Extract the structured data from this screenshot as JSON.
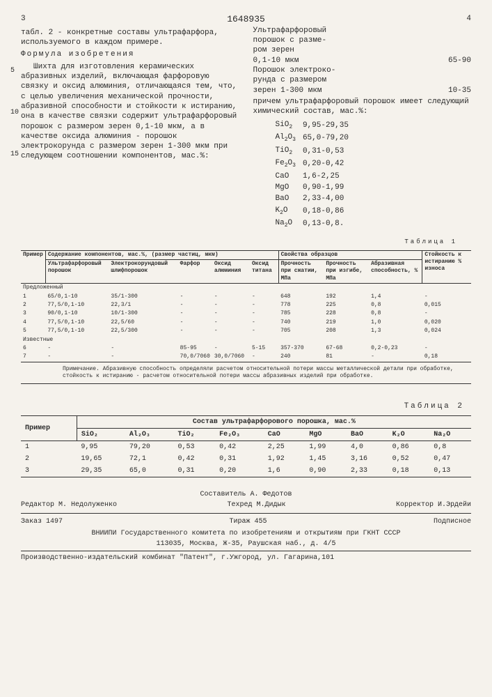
{
  "header": {
    "page_l": "3",
    "doc": "1648935",
    "page_r": "4"
  },
  "leftcol": {
    "p1": "табл. 2 - конкретные составы ультрафарфора, используемого в каждом примере.",
    "formula_label": "Формула изобретения",
    "p2": "Шихта для изготовления керамических абразивных изделий, включающая фарфоровую связку и оксид алюминия, отличающаяся тем, что, с целью увеличения механической прочности, абразивной способности и стойкости к истиранию, она в качестве связки содержит ультрафарфоровый порошок с размером зерен 0,1-10 мкм, а в качестве оксида алюминия - порошок электрокорунда с размером зерен 1-300 мкм при следующем соотношении компонентов, мас.%:"
  },
  "rightcol": {
    "r1a": "Ультрафарфоровый",
    "r1b": "порошок с разме-",
    "r1c": "ром зерен",
    "r1d": "0,1-10 мкм",
    "r1v": "65-90",
    "r2a": "Порошок электроко-",
    "r2b": "рунда с размером",
    "r2c": "зерен 1-300 мкм",
    "r2v": "10-35",
    "r3": "причем ультрафарфоровый порошок имеет следующий химический состав, мас.%:"
  },
  "margin_nums": {
    "n5": "5",
    "n10": "10",
    "n15": "15"
  },
  "chem": [
    {
      "f": "SiO",
      "s": "2",
      "v": "9,95-29,35"
    },
    {
      "f": "Al",
      "s": "2",
      "f2": "O",
      "s2": "3",
      "v": "65,0-79,20"
    },
    {
      "f": "TiO",
      "s": "2",
      "v": "0,31-0,53"
    },
    {
      "f": "Fe",
      "s": "2",
      "f2": "O",
      "s2": "3",
      "v": "0,20-0,42"
    },
    {
      "f": "CaO",
      "s": "",
      "v": "1,6-2,25"
    },
    {
      "f": "MgO",
      "s": "",
      "v": "0,90-1,99"
    },
    {
      "f": "BaO",
      "s": "",
      "v": "2,33-4,00"
    },
    {
      "f": "K",
      "s": "2",
      "f2": "O",
      "v": "0,18-0,86"
    },
    {
      "f": "Na",
      "s": "2",
      "f2": "O",
      "v": "0,13-0,8."
    }
  ],
  "t1": {
    "title": "Таблица 1",
    "h_primer": "Пример",
    "h_comp": "Содержание компонентов, мас.%, (размер частиц, мкм)",
    "h_prop": "Свойства образцов",
    "h_wear": "Стойкость к истиранию % износа",
    "h_uf": "Ультрафарфоровый порошок",
    "h_ek": "Электрокорундовый шлифпорошок",
    "h_far": "Фарфор",
    "h_al": "Оксид алюминия",
    "h_ti": "Оксид титана",
    "h_str": "Прочность при сжатии, МПа",
    "h_bend": "Прочность при изгибе, МПа",
    "h_abr": "Абразивная способность, %",
    "group1": "Предложенный",
    "group2": "Известные",
    "rows": [
      {
        "n": "1",
        "uf": "65/0,1-10",
        "ek": "35/1-300",
        "far": "-",
        "al": "-",
        "ti": "-",
        "str": "648",
        "bend": "192",
        "abr": "1,4",
        "wear": "-"
      },
      {
        "n": "2",
        "uf": "77,5/0,1-10",
        "ek": "22,3/1",
        "far": "-",
        "al": "-",
        "ti": "-",
        "str": "778",
        "bend": "225",
        "abr": "0,8",
        "wear": "0,015"
      },
      {
        "n": "3",
        "uf": "90/0,1-10",
        "ek": "10/1-300",
        "far": "-",
        "al": "-",
        "ti": "-",
        "str": "785",
        "bend": "228",
        "abr": "0,8",
        "wear": "-"
      },
      {
        "n": "4",
        "uf": "77,5/0,1-10",
        "ek": "22,5/60",
        "far": "-",
        "al": "-",
        "ti": "-",
        "str": "740",
        "bend": "219",
        "abr": "1,0",
        "wear": "0,020"
      },
      {
        "n": "5",
        "uf": "77,5/0,1-10",
        "ek": "22,5/300",
        "far": "-",
        "al": "-",
        "ti": "-",
        "str": "705",
        "bend": "208",
        "abr": "1,3",
        "wear": "0,024"
      }
    ],
    "rows2": [
      {
        "n": "6",
        "uf": "-",
        "ek": "-",
        "far": "85-95",
        "al": "-",
        "ti": "5-15",
        "str": "357-370",
        "bend": "67-68",
        "abr": "0,2-0,23",
        "wear": "-"
      },
      {
        "n": "7",
        "uf": "-",
        "ek": "-",
        "far": "70,0/7060",
        "al": "30,0/7060",
        "ti": "-",
        "str": "240",
        "bend": "81",
        "abr": "-",
        "wear": "0,18"
      }
    ],
    "note": "Примечание. Абразивную способность определяли расчетом относительной потери массы металлической детали при обработке, стойкость к истиранию - расчетом относительной потери массы абразивных изделий при обработке."
  },
  "t2": {
    "title": "Таблица 2",
    "h_primer": "Пример",
    "h_comp": "Состав ультрафарфорового порошка, мас.%",
    "cols": [
      "SiO₂",
      "Al₂O₃",
      "TiO₂",
      "Fe₂O₃",
      "CaO",
      "MgO",
      "BaO",
      "K₂O",
      "Na₂O"
    ],
    "rows": [
      {
        "n": "1",
        "v": [
          "9,95",
          "79,20",
          "0,53",
          "0,42",
          "2,25",
          "1,99",
          "4,0",
          "0,86",
          "0,8"
        ]
      },
      {
        "n": "2",
        "v": [
          "19,65",
          "72,1",
          "0,42",
          "0,31",
          "1,92",
          "1,45",
          "3,16",
          "0,52",
          "0,47"
        ]
      },
      {
        "n": "3",
        "v": [
          "29,35",
          "65,0",
          "0,31",
          "0,20",
          "1,6",
          "0,90",
          "2,33",
          "0,18",
          "0,13"
        ]
      }
    ]
  },
  "credits": {
    "comp": "Составитель А. Федотов",
    "ed": "Редактор М. Недолуженко",
    "tech": "Техред М.Дидык",
    "corr": "Корректор И.Эрдейи",
    "order": "Заказ 1497",
    "tir": "Тираж 455",
    "sub": "Подписное",
    "org": "ВНИИПИ Государственного комитета по изобретениям и открытиям при ГКНТ СССР",
    "addr": "113035, Москва, Ж-35, Раушская наб., д. 4/5",
    "prod": "Производственно-издательский комбинат \"Патент\", г.Ужгород, ул. Гагарина,101"
  }
}
